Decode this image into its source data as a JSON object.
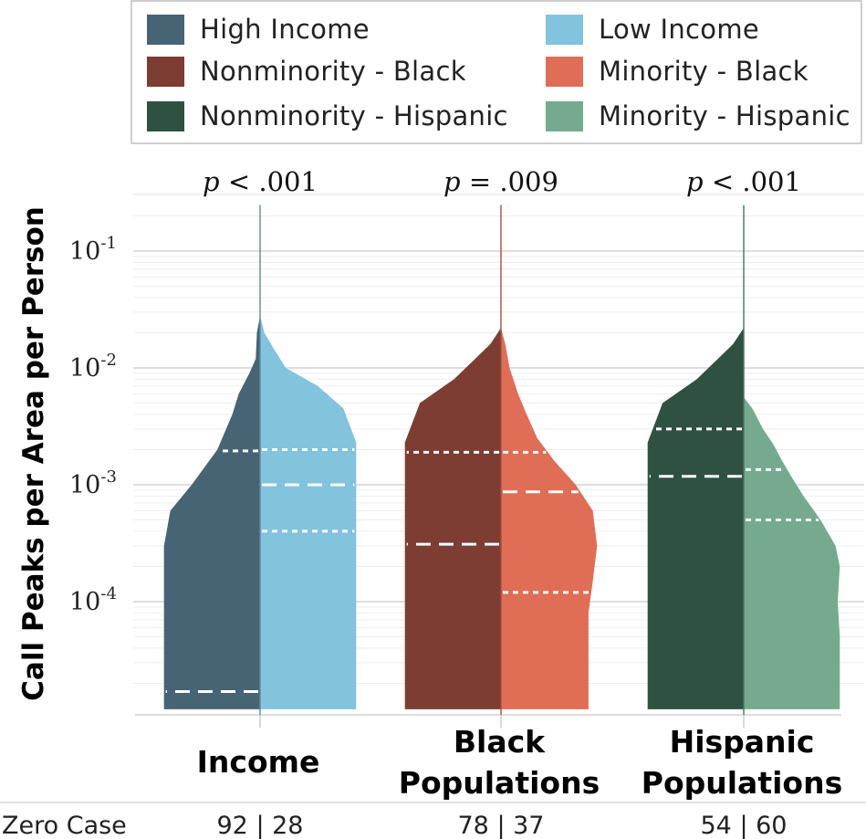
{
  "legend": [
    {
      "label": "High Income",
      "color": "#466473"
    },
    {
      "label": "Low Income",
      "color": "#82c3de"
    },
    {
      "label": "Nonminority - Black",
      "color": "#7d3d32"
    },
    {
      "label": "Minority - Black",
      "color": "#e06d55"
    },
    {
      "label": "Nonminority - Hispanic",
      "color": "#2f5142"
    },
    {
      "label": "Minority - Hispanic",
      "color": "#75aa90"
    }
  ],
  "chart_data": {
    "type": "split-violin",
    "ylabel": "Call Peaks per Area per Person",
    "yscale": "log",
    "ylim": [
      1.2e-05,
      0.25
    ],
    "ytick_labels": [
      {
        "base": "10",
        "exp": "-1",
        "value": 0.1
      },
      {
        "base": "10",
        "exp": "-2",
        "value": 0.01
      },
      {
        "base": "10",
        "exp": "-3",
        "value": 0.001
      },
      {
        "base": "10",
        "exp": "-4",
        "value": 0.0001
      }
    ],
    "zero_case_label": "Zero Case",
    "groups": [
      {
        "label_lines": [
          "Income"
        ],
        "p_italic": "p",
        "p_rest": " < .001",
        "zero_case": "92 | 28",
        "left": {
          "name": "High Income",
          "color": "#466473",
          "max_value": 0.028,
          "quartiles": [
            1.7e-05,
            0.00195
          ],
          "density": [
            [
              1.2e-05,
              0.45
            ],
            [
              3e-05,
              0.45
            ],
            [
              0.0001,
              0.45
            ],
            [
              0.0003,
              0.45
            ],
            [
              0.0006,
              0.42
            ],
            [
              0.001,
              0.32
            ],
            [
              0.002,
              0.2
            ],
            [
              0.004,
              0.13
            ],
            [
              0.006,
              0.1
            ],
            [
              0.009,
              0.05
            ],
            [
              0.012,
              0.02
            ],
            [
              0.02,
              0.015
            ],
            [
              0.028,
              0.0
            ]
          ]
        },
        "right": {
          "name": "Low Income",
          "color": "#82c3de",
          "max_value": 0.028,
          "quartiles": [
            0.0004,
            0.001,
            0.002
          ],
          "density": [
            [
              1.2e-05,
              0.45
            ],
            [
              0.0003,
              0.45
            ],
            [
              0.001,
              0.45
            ],
            [
              0.0023,
              0.45
            ],
            [
              0.0045,
              0.39
            ],
            [
              0.007,
              0.27
            ],
            [
              0.01,
              0.12
            ],
            [
              0.014,
              0.07
            ],
            [
              0.02,
              0.02
            ],
            [
              0.028,
              0.0
            ]
          ]
        }
      },
      {
        "label_lines": [
          "Black",
          "Populations"
        ],
        "p_italic": "p",
        "p_rest": " = .009",
        "zero_case": "78 | 37",
        "left": {
          "name": "Nonminority - Black",
          "color": "#7d3d32",
          "max_value": 0.022,
          "quartiles": [
            0.00031,
            0.0019
          ],
          "density": [
            [
              1.2e-05,
              0.45
            ],
            [
              0.0003,
              0.45
            ],
            [
              0.001,
              0.45
            ],
            [
              0.0023,
              0.45
            ],
            [
              0.005,
              0.38
            ],
            [
              0.008,
              0.22
            ],
            [
              0.012,
              0.12
            ],
            [
              0.016,
              0.05
            ],
            [
              0.022,
              0.0
            ]
          ]
        },
        "right": {
          "name": "Minority - Black",
          "color": "#e06d55",
          "max_value": 0.022,
          "quartiles": [
            0.00012,
            0.00087,
            0.0019
          ],
          "density": [
            [
              1.2e-05,
              0.41
            ],
            [
              8e-05,
              0.41
            ],
            [
              0.00015,
              0.43
            ],
            [
              0.0003,
              0.45
            ],
            [
              0.0006,
              0.43
            ],
            [
              0.001,
              0.35
            ],
            [
              0.0016,
              0.25
            ],
            [
              0.0025,
              0.17
            ],
            [
              0.004,
              0.12
            ],
            [
              0.006,
              0.08
            ],
            [
              0.01,
              0.04
            ],
            [
              0.016,
              0.02
            ],
            [
              0.022,
              0.0
            ]
          ]
        }
      },
      {
        "label_lines": [
          "Hispanic",
          "Populations"
        ],
        "p_italic": "p",
        "p_rest": " < .001",
        "zero_case": "54 | 60",
        "left": {
          "name": "Nonminority - Hispanic",
          "color": "#2f5142",
          "max_value": 0.022,
          "quartiles": [
            0.00118,
            0.003
          ],
          "density": [
            [
              1.2e-05,
              0.45
            ],
            [
              0.0003,
              0.45
            ],
            [
              0.001,
              0.45
            ],
            [
              0.0023,
              0.45
            ],
            [
              0.005,
              0.38
            ],
            [
              0.008,
              0.22
            ],
            [
              0.012,
              0.12
            ],
            [
              0.016,
              0.05
            ],
            [
              0.022,
              0.0
            ]
          ]
        },
        "right": {
          "name": "Minority - Hispanic",
          "color": "#75aa90",
          "max_value": 0.0056,
          "quartiles": [
            0.0005,
            0.00135
          ],
          "density": [
            [
              1.2e-05,
              0.45
            ],
            [
              5e-05,
              0.45
            ],
            [
              0.0001,
              0.44
            ],
            [
              0.0002,
              0.45
            ],
            [
              0.0003,
              0.43
            ],
            [
              0.0005,
              0.36
            ],
            [
              0.0008,
              0.28
            ],
            [
              0.0012,
              0.22
            ],
            [
              0.0016,
              0.18
            ],
            [
              0.0022,
              0.14
            ],
            [
              0.003,
              0.09
            ],
            [
              0.0045,
              0.04
            ],
            [
              0.0056,
              0.0
            ]
          ]
        }
      }
    ]
  }
}
